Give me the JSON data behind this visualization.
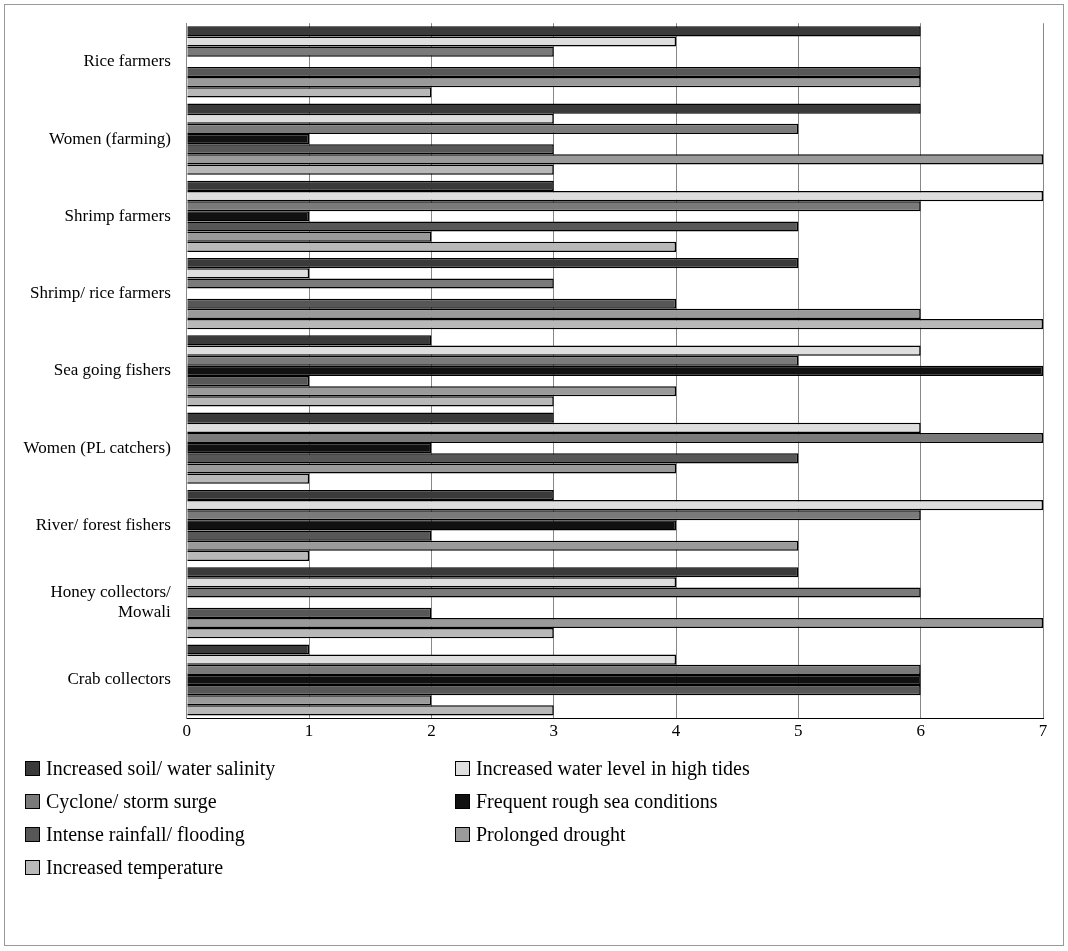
{
  "chart_data": {
    "type": "bar",
    "orientation": "horizontal",
    "categories": [
      "Rice farmers",
      "Women (farming)",
      "Shrimp farmers",
      "Shrimp/ rice farmers",
      "Sea going fishers",
      "Women (PL catchers)",
      "River/ forest fishers",
      "Honey collectors/ Mowali",
      "Crab collectors"
    ],
    "series": [
      {
        "name": "Increased soil/ water salinity",
        "color": "#3a3a3a",
        "values": [
          6,
          6,
          3,
          5,
          2,
          3,
          3,
          5,
          1
        ]
      },
      {
        "name": "Increased water level in high tides",
        "color": "#dedede",
        "values": [
          4,
          3,
          7,
          1,
          6,
          6,
          7,
          4,
          4
        ]
      },
      {
        "name": "Cyclone/ storm surge",
        "color": "#7a7a7a",
        "values": [
          3,
          5,
          6,
          3,
          5,
          7,
          6,
          6,
          6
        ]
      },
      {
        "name": "Frequent rough sea conditions",
        "color": "#111111",
        "values": [
          null,
          1,
          1,
          null,
          7,
          2,
          4,
          null,
          6
        ]
      },
      {
        "name": "Intense rainfall/ flooding",
        "color": "#575757",
        "values": [
          6,
          3,
          5,
          4,
          1,
          5,
          2,
          2,
          6
        ]
      },
      {
        "name": "Prolonged drought",
        "color": "#9a9a9a",
        "values": [
          6,
          7,
          2,
          6,
          4,
          4,
          5,
          7,
          2
        ]
      },
      {
        "name": "Increased temperature",
        "color": "#b8b8b8",
        "values": [
          2,
          3,
          4,
          7,
          3,
          1,
          1,
          3,
          3
        ]
      }
    ],
    "xlim": [
      0,
      7
    ],
    "xticks": [
      0,
      1,
      2,
      3,
      4,
      5,
      6,
      7
    ],
    "grid": "x",
    "legend": "bottom"
  }
}
